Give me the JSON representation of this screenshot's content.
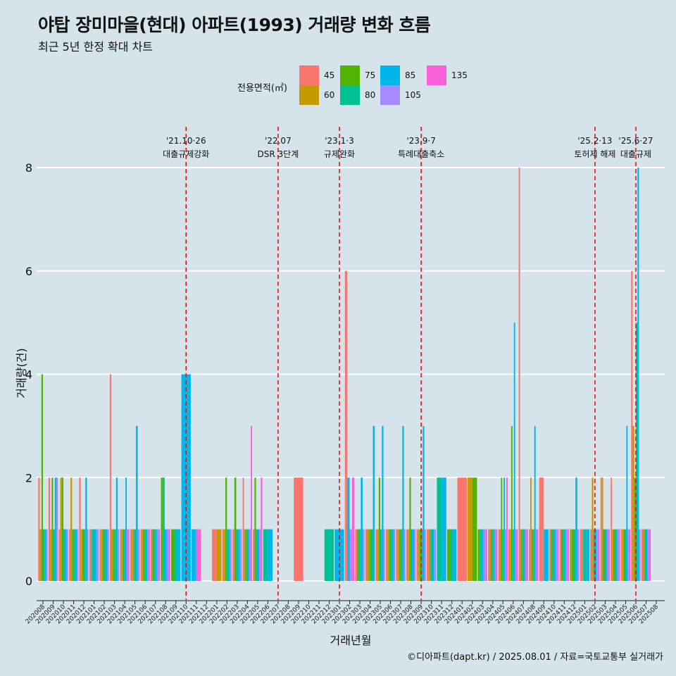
{
  "title": "야탑 장미마을(현대) 아파트(1993) 거래량 변화 흐름",
  "subtitle": "최근 5년 한정 확대 차트",
  "legend_title": "전용면적(㎡)",
  "caption": "©디아파트(dapt.kr) / 2025.08.01 / 자료=국토교통부 실거래가",
  "colors": {
    "background": "#d5e3ea",
    "gridline": "#ffffff",
    "event_line": "#e8141a",
    "area_45": "#f8766d",
    "area_60": "#c49a00",
    "area_75": "#53b400",
    "area_80": "#00c094",
    "area_85": "#00b6eb",
    "area_105": "#a58aff",
    "area_135": "#fb61d7"
  },
  "chart_data": {
    "type": "bar",
    "xlabel": "거래년월",
    "ylabel": "거래량(건)",
    "ylim": [
      0,
      8
    ],
    "yticks": [
      0,
      2,
      4,
      6,
      8
    ],
    "grid": true,
    "legend_position": "top",
    "categories": [
      "202008",
      "202009",
      "202010",
      "202011",
      "202012",
      "202101",
      "202102",
      "202103",
      "202104",
      "202105",
      "202106",
      "202107",
      "202108",
      "202109",
      "202110",
      "202111",
      "202112",
      "202201",
      "202202",
      "202203",
      "202204",
      "202205",
      "202206",
      "202207",
      "202208",
      "202209",
      "202210",
      "202211",
      "202212",
      "202301",
      "202302",
      "202303",
      "202304",
      "202305",
      "202306",
      "202307",
      "202308",
      "202309",
      "202310",
      "202311",
      "202312",
      "202401",
      "202402",
      "202403",
      "202404",
      "202405",
      "202406",
      "202407",
      "202408",
      "202409",
      "202410",
      "202411",
      "202412",
      "202501",
      "202502",
      "202503",
      "202504",
      "202505",
      "202506",
      "202507",
      "202508"
    ],
    "series": [
      {
        "name": "45",
        "values": [
          2,
          2,
          1,
          1,
          2,
          1,
          1,
          4,
          1,
          1,
          1,
          1,
          0,
          0,
          0,
          0,
          0,
          1,
          1,
          1,
          2,
          1,
          0,
          0,
          0,
          2,
          0,
          0,
          0,
          0,
          6,
          1,
          1,
          1,
          1,
          1,
          1,
          1,
          1,
          0,
          0,
          2,
          0,
          0,
          1,
          1,
          1,
          8,
          1,
          2,
          1,
          1,
          0,
          1,
          1,
          2,
          2,
          1,
          6,
          1,
          0
        ]
      },
      {
        "name": "60",
        "values": [
          1,
          1,
          2,
          2,
          1,
          0,
          1,
          1,
          1,
          1,
          1,
          0,
          0,
          0,
          0,
          0,
          0,
          1,
          1,
          0,
          1,
          0,
          0,
          0,
          0,
          0,
          0,
          0,
          0,
          0,
          0,
          0,
          1,
          1,
          1,
          1,
          1,
          1,
          1,
          0,
          0,
          0,
          2,
          0,
          1,
          1,
          1,
          1,
          2,
          0,
          0,
          0,
          1,
          0,
          2,
          2,
          1,
          1,
          3,
          1,
          0
        ]
      },
      {
        "name": "75",
        "values": [
          4,
          2,
          2,
          1,
          1,
          0,
          1,
          1,
          1,
          0,
          1,
          1,
          2,
          1,
          0,
          0,
          0,
          0,
          2,
          2,
          1,
          2,
          0,
          0,
          0,
          0,
          0,
          0,
          0,
          0,
          0,
          1,
          1,
          2,
          1,
          1,
          2,
          1,
          0,
          0,
          1,
          0,
          2,
          1,
          1,
          2,
          3,
          1,
          1,
          0,
          1,
          1,
          1,
          0,
          0,
          1,
          1,
          1,
          2,
          0,
          0
        ]
      },
      {
        "name": "80",
        "values": [
          1,
          1,
          1,
          1,
          1,
          1,
          1,
          1,
          1,
          1,
          1,
          1,
          2,
          1,
          0,
          0,
          0,
          0,
          1,
          1,
          1,
          1,
          1,
          0,
          0,
          0,
          0,
          0,
          1,
          0,
          0,
          1,
          1,
          1,
          1,
          1,
          1,
          1,
          1,
          2,
          1,
          0,
          0,
          1,
          1,
          1,
          1,
          1,
          1,
          0,
          1,
          1,
          1,
          1,
          1,
          1,
          1,
          1,
          5,
          1,
          0
        ]
      },
      {
        "name": "85",
        "values": [
          1,
          2,
          1,
          1,
          2,
          1,
          1,
          2,
          2,
          3,
          1,
          1,
          1,
          1,
          4,
          1,
          0,
          0,
          1,
          1,
          1,
          1,
          1,
          0,
          0,
          0,
          0,
          0,
          0,
          1,
          2,
          2,
          3,
          3,
          1,
          3,
          1,
          3,
          1,
          2,
          1,
          0,
          0,
          1,
          1,
          2,
          5,
          1,
          3,
          1,
          1,
          1,
          2,
          1,
          1,
          1,
          1,
          3,
          8,
          1,
          0
        ]
      },
      {
        "name": "105",
        "values": [
          1,
          2,
          1,
          1,
          1,
          1,
          1,
          1,
          1,
          1,
          1,
          1,
          1,
          0,
          0,
          0,
          0,
          0,
          1,
          1,
          1,
          1,
          0,
          0,
          0,
          0,
          0,
          0,
          0,
          0,
          1,
          1,
          0,
          1,
          1,
          1,
          1,
          1,
          1,
          0,
          0,
          0,
          0,
          1,
          1,
          1,
          1,
          1,
          1,
          0,
          1,
          1,
          1,
          0,
          1,
          1,
          1,
          1,
          1,
          1,
          0
        ]
      },
      {
        "name": "135",
        "values": [
          0,
          0,
          0,
          0,
          0,
          0,
          0,
          0,
          1,
          0,
          1,
          1,
          1,
          0,
          0,
          1,
          0,
          0,
          0,
          0,
          3,
          2,
          0,
          0,
          0,
          0,
          0,
          0,
          0,
          0,
          2,
          0,
          0,
          0,
          0,
          0,
          0,
          0,
          0,
          0,
          0,
          0,
          0,
          1,
          1,
          2,
          1,
          1,
          1,
          0,
          1,
          1,
          0,
          0,
          1,
          1,
          1,
          1,
          0,
          1,
          0
        ]
      }
    ],
    "events": [
      {
        "date": "'21.10·26",
        "label": "대출규제강화",
        "at": "202110"
      },
      {
        "date": "'22.07",
        "label": "DSR 3단계",
        "at": "202207"
      },
      {
        "date": "'23.1·3",
        "label": "규제완화",
        "at": "202301"
      },
      {
        "date": "'23.9·7",
        "label": "특례대출축소",
        "at": "202309"
      },
      {
        "date": "'25.2·13",
        "label": "토허제 해제",
        "at": "202502"
      },
      {
        "date": "'25.6·27",
        "label": "대출규제",
        "at": "202506"
      }
    ]
  }
}
